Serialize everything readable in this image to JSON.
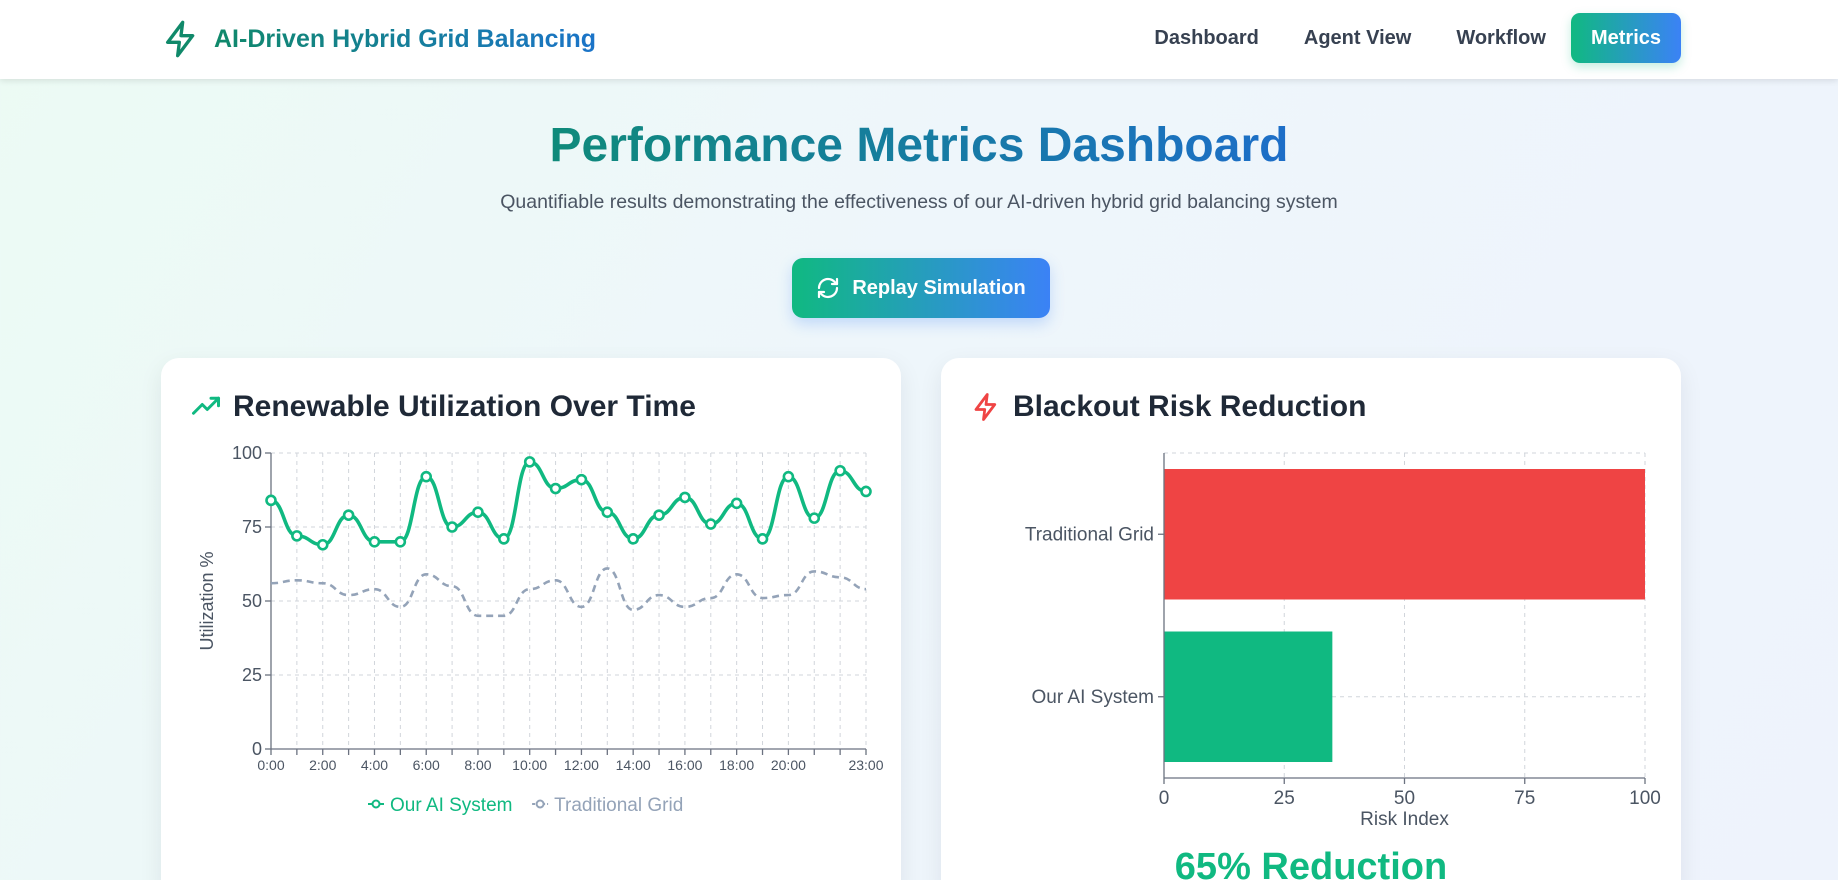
{
  "header": {
    "brand_title": "AI-Driven Hybrid Grid Balancing",
    "brand_icon": "lightning-bolt-icon",
    "nav": [
      {
        "label": "Dashboard",
        "active": false
      },
      {
        "label": "Agent View",
        "active": false
      },
      {
        "label": "Workflow",
        "active": false
      },
      {
        "label": "Metrics",
        "active": true
      }
    ]
  },
  "hero": {
    "title": "Performance Metrics Dashboard",
    "subtitle": "Quantifiable results demonstrating the effectiveness of our AI-driven hybrid grid balancing system",
    "replay_label": "Replay Simulation",
    "replay_icon": "refresh-icon"
  },
  "colors": {
    "accent_green": "#10b981",
    "accent_blue": "#3b82f6",
    "traditional_gray": "#94a3b8",
    "risk_red": "#ef4444"
  },
  "cards": {
    "utilization": {
      "title": "Renewable Utilization Over Time",
      "icon": "trending-up-icon"
    },
    "risk": {
      "title": "Blackout Risk Reduction",
      "icon": "lightning-bolt-icon",
      "reduction_text": "65% Reduction"
    }
  },
  "chart_data": [
    {
      "type": "line",
      "title": "Renewable Utilization Over Time",
      "xlabel": "",
      "ylabel": "Utilization %",
      "x": [
        "0:00",
        "1:00",
        "2:00",
        "3:00",
        "4:00",
        "5:00",
        "6:00",
        "7:00",
        "8:00",
        "9:00",
        "10:00",
        "11:00",
        "12:00",
        "13:00",
        "14:00",
        "15:00",
        "16:00",
        "17:00",
        "18:00",
        "19:00",
        "20:00",
        "21:00",
        "22:00",
        "23:00"
      ],
      "x_tick_labels": [
        "0:00",
        "2:00",
        "4:00",
        "6:00",
        "8:00",
        "10:00",
        "12:00",
        "14:00",
        "16:00",
        "18:00",
        "20:00",
        "23:00"
      ],
      "y_ticks": [
        0,
        25,
        50,
        75,
        100
      ],
      "ylim": [
        0,
        100
      ],
      "grid": true,
      "legend": "bottom",
      "series": [
        {
          "name": "Our AI System",
          "color": "#10b981",
          "style": "solid",
          "values": [
            84,
            72,
            69,
            79,
            70,
            70,
            92,
            75,
            80,
            71,
            97,
            88,
            91,
            80,
            71,
            79,
            85,
            76,
            83,
            71,
            92,
            78,
            94,
            87
          ]
        },
        {
          "name": "Traditional Grid",
          "color": "#94a3b8",
          "style": "dashed",
          "values": [
            56,
            57,
            56,
            52,
            54,
            48,
            59,
            55,
            45,
            45,
            54,
            57,
            48,
            61,
            47,
            52,
            48,
            51,
            59,
            51,
            52,
            60,
            58,
            54
          ]
        }
      ]
    },
    {
      "type": "bar",
      "orientation": "horizontal",
      "title": "Blackout Risk Reduction",
      "categories": [
        "Traditional Grid",
        "Our AI System"
      ],
      "values": [
        100,
        35
      ],
      "colors": [
        "#ef4444",
        "#10b981"
      ],
      "xlabel": "Risk Index",
      "ylabel": "",
      "x_ticks": [
        0,
        25,
        50,
        75,
        100
      ],
      "xlim": [
        0,
        100
      ],
      "grid": true
    }
  ]
}
